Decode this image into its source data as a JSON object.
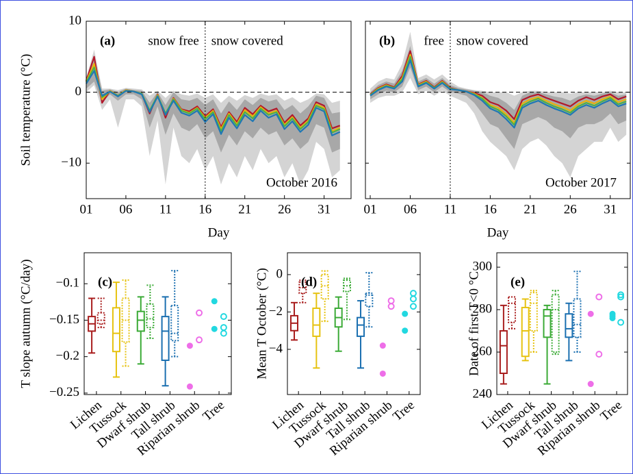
{
  "chart_data": [
    {
      "type": "line",
      "panel_label": "(a)",
      "left_label": "snow free",
      "right_label": "snow covered",
      "period_label": "October 2016",
      "ylabel": "Soil temperature (°C)",
      "xlabel": "Day",
      "show_ytick_labels": true,
      "xlim": [
        1,
        34.4
      ],
      "ylim": [
        -15,
        10
      ],
      "xticks": [
        {
          "value": 1,
          "label": "01"
        },
        {
          "value": 6,
          "label": "06"
        },
        11,
        16,
        21,
        26,
        31
      ],
      "yticks": [
        {
          "value": -10,
          "label": "−10"
        },
        0,
        10
      ],
      "reference_line": 0,
      "snow_onset": 16,
      "x": [
        1,
        2,
        3,
        4,
        5,
        6,
        7,
        8,
        9,
        10,
        11,
        12,
        13,
        14,
        15,
        16,
        17,
        18,
        19,
        20,
        21,
        22,
        23,
        24,
        25,
        26,
        27,
        28,
        29,
        30,
        31,
        32,
        33
      ],
      "bands": [
        {
          "color": "#d4d4d4",
          "lower": [
            0,
            1,
            -2.5,
            -1,
            -5,
            -1,
            -1,
            -2,
            -9,
            -4,
            -13,
            -5,
            -9,
            -10,
            -8,
            -11,
            -9,
            -13,
            -10,
            -12,
            -9,
            -11,
            -8,
            -10,
            -9,
            -12,
            -10,
            -13,
            -11,
            -7,
            -8,
            -12,
            -11
          ],
          "upper": [
            2,
            6,
            0.5,
            0.5,
            0.3,
            0.6,
            0.5,
            0.4,
            -0.5,
            0.2,
            -0.8,
            0.2,
            -0.3,
            -0.5,
            -0.2,
            -0.8,
            -0.3,
            -1.5,
            -0.5,
            -1.2,
            -0.4,
            -0.8,
            -0.2,
            -0.5,
            -0.3,
            -1.2,
            -0.7,
            -1.5,
            -1,
            -0.2,
            -0.3,
            -1.5,
            -1.2
          ]
        },
        {
          "color": "#a8a8a8",
          "lower": [
            0.5,
            1.5,
            -1.5,
            -0.3,
            -1.2,
            -0.3,
            -0.3,
            -1,
            -5,
            -2,
            -6,
            -3,
            -5,
            -5.5,
            -4.5,
            -6.5,
            -5.5,
            -8.5,
            -6,
            -7.5,
            -5.5,
            -6.5,
            -5,
            -6,
            -5.5,
            -7.5,
            -6.5,
            -8,
            -7,
            -4.5,
            -5,
            -8.5,
            -8
          ],
          "upper": [
            1.8,
            5.2,
            0.2,
            0.4,
            0,
            0.5,
            0.3,
            0.2,
            -1.5,
            0,
            -1.8,
            0,
            -1,
            -1.2,
            -0.8,
            -1.8,
            -1,
            -3,
            -1.3,
            -2.5,
            -1,
            -1.8,
            -0.8,
            -1.3,
            -1,
            -2.5,
            -1.8,
            -3,
            -2,
            -0.5,
            -0.8,
            -3,
            -2.8
          ]
        }
      ],
      "series": [
        {
          "color": "#b2182b",
          "values": [
            1.6,
            5,
            -1.5,
            0.2,
            -0.5,
            0.3,
            0.1,
            -0.2,
            -3,
            -0.3,
            -3.6,
            -0.8,
            -2.4,
            -2.7,
            -2,
            -3.4,
            -2.4,
            -4.9,
            -2.8,
            -4.2,
            -2.2,
            -3.1,
            -1.9,
            -2.7,
            -2.3,
            -4.3,
            -3.2,
            -4.7,
            -3.7,
            -1.4,
            -1.9,
            -5.1,
            -4.7
          ]
        },
        {
          "color": "#e8b20c",
          "values": [
            1.5,
            4,
            -1,
            0.2,
            -0.5,
            0.3,
            0.1,
            -0.2,
            -2.7,
            -0.4,
            -3.2,
            -0.9,
            -2.5,
            -2.9,
            -2.2,
            -3.6,
            -2.6,
            -5.2,
            -3,
            -4.5,
            -2.5,
            -3.4,
            -2.1,
            -3,
            -2.6,
            -4.6,
            -3.5,
            -5,
            -4,
            -1.7,
            -2.2,
            -5.5,
            -5
          ]
        },
        {
          "color": "#4daf4a",
          "values": [
            1.4,
            3.5,
            -0.7,
            0.1,
            -0.5,
            0.2,
            0.1,
            -0.2,
            -2.6,
            -0.5,
            -3,
            -1,
            -2.6,
            -3,
            -2.3,
            -3.8,
            -2.8,
            -5.5,
            -3.2,
            -4.7,
            -2.8,
            -3.7,
            -2.3,
            -3.2,
            -2.8,
            -4.8,
            -3.7,
            -5.2,
            -4.2,
            -1.9,
            -2.4,
            -5.7,
            -5.2
          ]
        },
        {
          "color": "#1f78b4",
          "values": [
            1.2,
            3,
            -0.5,
            0.1,
            -0.6,
            0.2,
            0.1,
            -0.3,
            -2.8,
            -0.6,
            -3.2,
            -1.2,
            -2.9,
            -3.3,
            -2.6,
            -4.2,
            -3.1,
            -5.9,
            -3.6,
            -5.1,
            -3.2,
            -4.1,
            -2.6,
            -3.6,
            -3.1,
            -5.2,
            -4.1,
            -5.6,
            -4.6,
            -2.2,
            -2.7,
            -6.1,
            -5.6
          ]
        }
      ]
    },
    {
      "type": "line",
      "panel_label": "(b)",
      "left_label": "free",
      "right_label": "snow covered",
      "period_label": "October 2017",
      "xlabel": "Day",
      "show_ytick_labels": false,
      "xlim": [
        0.4,
        33.5
      ],
      "ylim": [
        -15,
        10
      ],
      "xticks": [
        {
          "value": 1,
          "label": "01"
        },
        {
          "value": 6,
          "label": "06"
        },
        11,
        16,
        21,
        26,
        31
      ],
      "yticks": [
        -10,
        0,
        10
      ],
      "reference_line": 0,
      "snow_onset": 11,
      "x": [
        1,
        2,
        3,
        4,
        5,
        6,
        7,
        8,
        9,
        10,
        11,
        12,
        13,
        14,
        15,
        16,
        17,
        18,
        19,
        20,
        21,
        22,
        23,
        24,
        25,
        26,
        27,
        28,
        29,
        30,
        31,
        32,
        33
      ],
      "bands": [
        {
          "color": "#d4d4d4",
          "lower": [
            -1.5,
            -0.8,
            -0.5,
            -0.5,
            0,
            2,
            -0.3,
            0.2,
            -0.5,
            0.2,
            -0.5,
            -1,
            -1.5,
            -3,
            -5.5,
            -7,
            -8,
            -9,
            -11,
            -8,
            -7,
            -6.5,
            -7.5,
            -9,
            -10,
            -12,
            -9,
            -8,
            -7,
            -7,
            -5,
            -7,
            -6
          ],
          "upper": [
            0.5,
            1.5,
            2,
            1.8,
            4,
            8.5,
            2,
            2.5,
            1.8,
            2.5,
            1.5,
            0.8,
            0.5,
            0.3,
            0.2,
            0,
            0,
            0,
            -0.5,
            0,
            0.2,
            0.2,
            0,
            0,
            0,
            -0.2,
            0,
            0,
            0,
            0,
            0.2,
            0,
            0
          ]
        },
        {
          "color": "#a8a8a8",
          "lower": [
            -1,
            -0.3,
            0.2,
            0,
            0.8,
            3.5,
            0.3,
            0.8,
            0,
            0.8,
            0,
            -0.2,
            -0.5,
            -1.5,
            -3,
            -4.5,
            -5,
            -6.5,
            -8,
            -4.5,
            -4,
            -3.5,
            -4,
            -5,
            -5.5,
            -6.5,
            -5,
            -4.5,
            -4.5,
            -4,
            -3,
            -4.5,
            -4
          ],
          "upper": [
            0,
            1,
            1.5,
            1.2,
            3,
            6.5,
            1.5,
            2,
            1.2,
            2,
            1,
            0.6,
            0.4,
            0.2,
            0,
            -0.5,
            -0.8,
            -1.5,
            -2.5,
            -0.5,
            0,
            0,
            -0.3,
            -0.6,
            -0.8,
            -1.2,
            -0.6,
            -0.3,
            -0.5,
            -0.2,
            0,
            -0.5,
            -0.3
          ]
        }
      ],
      "series": [
        {
          "color": "#b2182b",
          "values": [
            -0.3,
            0.6,
            1.1,
            0.7,
            2.3,
            5.8,
            1.1,
            1.6,
            0.7,
            1.6,
            0.6,
            0.3,
            0.1,
            -0.1,
            -0.5,
            -1.4,
            -1.8,
            -2.6,
            -3.8,
            -1.1,
            -0.6,
            -0.3,
            -0.8,
            -1.2,
            -1.6,
            -2,
            -1.2,
            -0.7,
            -1.1,
            -0.6,
            -0.3,
            -1,
            -0.6
          ]
        },
        {
          "color": "#e8b20c",
          "values": [
            -0.4,
            0.5,
            1,
            0.6,
            2,
            5.3,
            1,
            1.5,
            0.6,
            1.5,
            0.5,
            0.3,
            0.1,
            -0.2,
            -0.8,
            -1.8,
            -2.2,
            -3.1,
            -4.3,
            -1.6,
            -1,
            -0.7,
            -1.2,
            -1.7,
            -2.1,
            -2.6,
            -1.7,
            -1.2,
            -1.6,
            -1,
            -0.6,
            -1.4,
            -1
          ]
        },
        {
          "color": "#4daf4a",
          "values": [
            -0.4,
            0.4,
            0.9,
            0.6,
            1.8,
            5,
            0.9,
            1.4,
            0.6,
            1.4,
            0.5,
            0.3,
            0.1,
            -0.3,
            -0.9,
            -2,
            -2.5,
            -3.4,
            -4.6,
            -1.9,
            -1.3,
            -0.9,
            -1.5,
            -2,
            -2.4,
            -2.9,
            -2,
            -1.5,
            -1.9,
            -1.3,
            -0.8,
            -1.7,
            -1.3
          ]
        },
        {
          "color": "#1f78b4",
          "values": [
            -0.5,
            0.3,
            0.8,
            0.5,
            1.5,
            4.5,
            0.8,
            1.3,
            0.5,
            1.3,
            0.4,
            0.3,
            0.1,
            -0.4,
            -1.2,
            -2.3,
            -2.8,
            -3.8,
            -5,
            -2.2,
            -1.6,
            -1.2,
            -1.8,
            -2.3,
            -2.7,
            -3.2,
            -2.3,
            -1.8,
            -2.2,
            -1.6,
            -1.1,
            -2,
            -1.6
          ]
        }
      ]
    },
    {
      "type": "box",
      "panel_label": "(c)",
      "ylabel": "T slope autumn (°C/day)",
      "ylim": [
        -0.252,
        -0.0575
      ],
      "yticks": [
        {
          "value": -0.25,
          "label": "−0.25"
        },
        {
          "value": -0.2,
          "label": "−0.2"
        },
        {
          "value": -0.15,
          "label": "−0.15"
        },
        {
          "value": -0.1,
          "label": "−0.1"
        }
      ],
      "categories": [
        "Lichen",
        "Tussock",
        "Dwarf shrub",
        "Tall shrub",
        "Riparian shrub",
        "Tree"
      ],
      "groups": [
        {
          "color": "#a81c1c",
          "solid": [
            -0.195,
            -0.165,
            -0.155,
            -0.145,
            -0.12
          ],
          "dotted": [
            -0.16,
            -0.155,
            -0.15,
            -0.14,
            -0.12
          ]
        },
        {
          "color": "#e6c20f",
          "solid": [
            -0.228,
            -0.193,
            -0.168,
            -0.133,
            -0.098
          ],
          "dotted": [
            -0.213,
            -0.18,
            -0.15,
            -0.12,
            -0.095
          ]
        },
        {
          "color": "#3aaa35",
          "solid": [
            -0.21,
            -0.165,
            -0.15,
            -0.138,
            -0.118
          ],
          "dotted": [
            -0.175,
            -0.16,
            -0.148,
            -0.128,
            -0.102
          ]
        },
        {
          "color": "#1a6fb0",
          "solid": [
            -0.24,
            -0.205,
            -0.165,
            -0.145,
            -0.118
          ],
          "dotted": [
            -0.2,
            -0.178,
            -0.168,
            -0.13,
            -0.082
          ]
        },
        {
          "color": "#ee6ee8",
          "solid_points": [
            -0.241,
            -0.185
          ],
          "open_points": [
            -0.177,
            -0.14
          ]
        },
        {
          "color": "#22d8e0",
          "solid_points": [
            -0.124,
            -0.162
          ],
          "open_points": [
            -0.145,
            -0.16,
            -0.168
          ]
        }
      ]
    },
    {
      "type": "box",
      "panel_label": "(d)",
      "ylabel": "Mean T October (°C)",
      "ylim": [
        -6.42,
        1.17
      ],
      "yticks": [
        {
          "value": -4,
          "label": "−4"
        },
        {
          "value": -2,
          "label": "−2"
        },
        0
      ],
      "categories": [
        "Lichen",
        "Tussock",
        "Dwarf shrub",
        "Tall shrub",
        "Riparian shrub",
        "Tree"
      ],
      "groups": [
        {
          "color": "#a81c1c",
          "solid": [
            -3.5,
            -3,
            -2.6,
            -2.2,
            -1.5
          ],
          "dotted": [
            -1.5,
            -1,
            -0.7,
            -0.4,
            -0.3
          ]
        },
        {
          "color": "#e6c20f",
          "solid": [
            -5,
            -3.3,
            -2.7,
            -1.8,
            -1
          ],
          "dotted": [
            -2.5,
            -1.3,
            -0.6,
            0,
            0.2
          ]
        },
        {
          "color": "#3aaa35",
          "solid": [
            -4.1,
            -2.8,
            -2.3,
            -1.8,
            -1.2
          ],
          "dotted": [
            -2.4,
            -0.9,
            -0.6,
            -0.3,
            -0.2
          ]
        },
        {
          "color": "#1a6fb0",
          "solid": [
            -5,
            -3.3,
            -2.7,
            -2.3,
            -1.4
          ],
          "dotted": [
            -2.8,
            -1.7,
            -1.1,
            -1,
            0.1
          ]
        },
        {
          "color": "#ee6ee8",
          "solid_points": [
            -3.8,
            -5.3
          ],
          "open_points": [
            -1.4,
            -1.7
          ]
        },
        {
          "color": "#22d8e0",
          "solid_points": [
            -2.1,
            -3
          ],
          "open_points": [
            -1,
            -1.3,
            -1.7
          ]
        }
      ]
    },
    {
      "type": "box",
      "panel_label": "(e)",
      "ylabel": "Date of first T<0 °C",
      "ylim": [
        240,
        306.8
      ],
      "yticks": [
        240,
        260,
        280,
        300
      ],
      "categories": [
        "Lichen",
        "Tussock",
        "Dwarf shrub",
        "Tall shrub",
        "Riparian shrub",
        "Tree"
      ],
      "groups": [
        {
          "color": "#a81c1c",
          "solid": [
            245,
            250,
            263,
            270,
            282
          ],
          "dotted": [
            271,
            274,
            283,
            286,
            286
          ]
        },
        {
          "color": "#e6c20f",
          "solid": [
            256,
            258,
            270,
            281,
            285
          ],
          "dotted": [
            260,
            270,
            283,
            288,
            289
          ]
        },
        {
          "color": "#3aaa35",
          "solid": [
            245,
            267,
            277,
            280,
            282
          ],
          "dotted": [
            259,
            260,
            280,
            287,
            289
          ]
        },
        {
          "color": "#1a6fb0",
          "solid": [
            256,
            267,
            271,
            278,
            283
          ],
          "dotted": [
            260,
            267,
            273,
            285,
            298
          ]
        },
        {
          "color": "#ee6ee8",
          "solid_points": [
            278,
            245
          ],
          "open_points": [
            286,
            259
          ]
        },
        {
          "color": "#22d8e0",
          "solid_points": [
            276,
            278,
            277
          ],
          "open_points": [
            274,
            287,
            286
          ]
        }
      ]
    }
  ]
}
